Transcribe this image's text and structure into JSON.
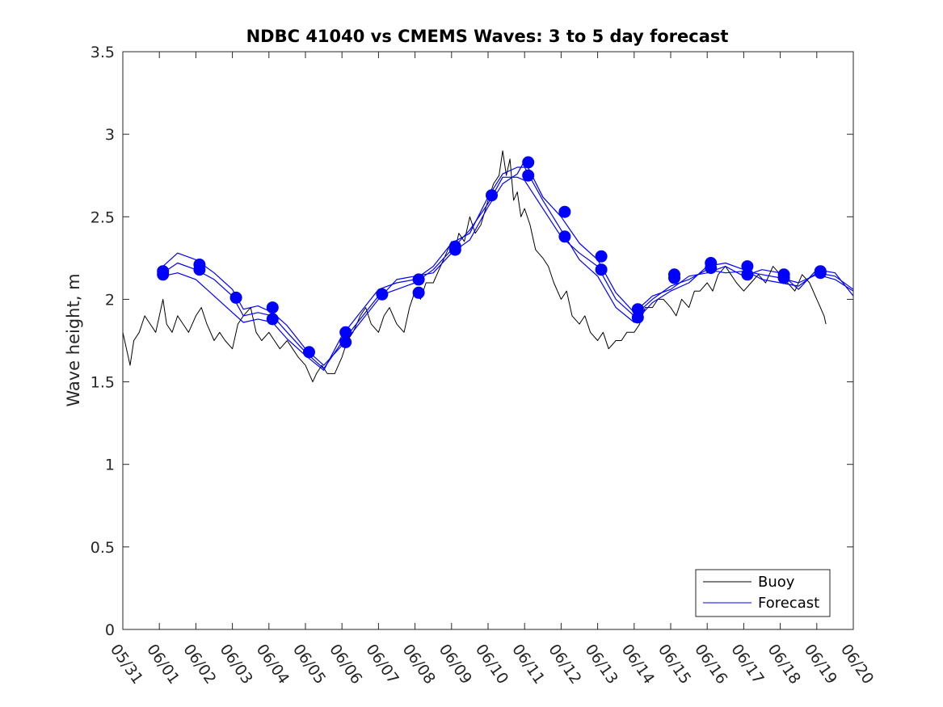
{
  "chart_data": {
    "type": "line",
    "title": "NDBC 41040 vs CMEMS Waves: 3 to 5 day forecast",
    "xlabel": "",
    "ylabel": "Wave height, m",
    "xlim": [
      "05/31",
      "06/20"
    ],
    "ylim": [
      0,
      3.5
    ],
    "x_tick_labels": [
      "05/31",
      "06/01",
      "06/02",
      "06/03",
      "06/04",
      "06/05",
      "06/06",
      "06/07",
      "06/08",
      "06/09",
      "06/10",
      "06/11",
      "06/12",
      "06/13",
      "06/14",
      "06/15",
      "06/16",
      "06/17",
      "06/18",
      "06/19",
      "06/20"
    ],
    "y_tick_labels": [
      "0",
      "0.5",
      "1",
      "1.5",
      "2",
      "2.5",
      "3",
      "3.5"
    ],
    "y_ticks": [
      0,
      0.5,
      1,
      1.5,
      2,
      2.5,
      3,
      3.5
    ],
    "grid": false,
    "legend_position": "bottom-right",
    "legend": [
      "Buoy",
      "Forecast"
    ],
    "series": [
      {
        "name": "Buoy",
        "color": "#000000",
        "x_day_of_june": [
          0.0,
          0.1,
          0.2,
          0.3,
          0.45,
          0.6,
          0.75,
          0.9,
          1.0,
          1.1,
          1.2,
          1.35,
          1.5,
          1.65,
          1.8,
          2.0,
          2.15,
          2.3,
          2.5,
          2.65,
          2.8,
          3.0,
          3.15,
          3.3,
          3.5,
          3.65,
          3.8,
          4.0,
          4.15,
          4.3,
          4.5,
          4.65,
          4.8,
          5.0,
          5.1,
          5.2,
          5.3,
          5.45,
          5.6,
          5.8,
          6.0,
          6.15,
          6.3,
          6.5,
          6.65,
          6.8,
          7.0,
          7.15,
          7.3,
          7.5,
          7.7,
          7.85,
          8.0,
          8.15,
          8.3,
          8.5,
          8.7,
          8.9,
          9.0,
          9.1,
          9.2,
          9.35,
          9.5,
          9.65,
          9.8,
          10.0,
          10.15,
          10.3,
          10.4,
          10.5,
          10.6,
          10.7,
          10.8,
          10.9,
          11.0,
          11.15,
          11.3,
          11.5,
          11.65,
          11.8,
          12.0,
          12.15,
          12.3,
          12.5,
          12.65,
          12.8,
          13.0,
          13.15,
          13.3,
          13.5,
          13.65,
          13.8,
          14.0,
          14.15,
          14.3,
          14.5,
          14.65,
          14.8,
          15.0,
          15.15,
          15.3,
          15.5,
          15.65,
          15.8,
          16.0,
          16.15,
          16.3,
          16.5,
          16.65,
          16.8,
          17.0,
          17.2,
          17.4,
          17.6,
          17.8,
          18.0,
          18.2,
          18.4,
          18.6,
          18.8,
          19.0,
          19.1,
          19.2,
          19.25
        ],
        "y": [
          1.8,
          1.7,
          1.6,
          1.75,
          1.8,
          1.9,
          1.85,
          1.8,
          1.9,
          2.0,
          1.85,
          1.8,
          1.9,
          1.85,
          1.8,
          1.9,
          1.95,
          1.85,
          1.75,
          1.8,
          1.75,
          1.7,
          1.85,
          1.9,
          1.95,
          1.8,
          1.75,
          1.8,
          1.75,
          1.7,
          1.75,
          1.7,
          1.65,
          1.6,
          1.55,
          1.5,
          1.55,
          1.6,
          1.55,
          1.55,
          1.65,
          1.75,
          1.8,
          1.9,
          1.95,
          1.85,
          1.8,
          1.9,
          1.95,
          1.85,
          1.8,
          1.95,
          2.05,
          2.0,
          2.1,
          2.1,
          2.2,
          2.3,
          2.35,
          2.3,
          2.4,
          2.35,
          2.5,
          2.4,
          2.45,
          2.6,
          2.7,
          2.75,
          2.9,
          2.75,
          2.85,
          2.6,
          2.65,
          2.5,
          2.55,
          2.45,
          2.3,
          2.25,
          2.2,
          2.1,
          2.0,
          2.05,
          1.9,
          1.85,
          1.9,
          1.8,
          1.75,
          1.8,
          1.7,
          1.75,
          1.75,
          1.8,
          1.8,
          1.85,
          1.95,
          1.95,
          2.0,
          2.0,
          1.95,
          1.9,
          2.0,
          1.95,
          2.05,
          2.05,
          2.1,
          2.05,
          2.15,
          2.2,
          2.15,
          2.1,
          2.05,
          2.1,
          2.15,
          2.1,
          2.2,
          2.15,
          2.1,
          2.05,
          2.15,
          2.1,
          2.0,
          1.95,
          1.9,
          1.85
        ]
      },
      {
        "name": "Forecast",
        "color": "#0000ff",
        "x_day_of_june": [
          1.1,
          1.5,
          2.0,
          2.5,
          3.0,
          3.3,
          3.7,
          4.1,
          4.5,
          5.0,
          5.5,
          6.0,
          6.5,
          7.0,
          7.5,
          8.0,
          8.5,
          9.0,
          9.5,
          10.0,
          10.4,
          10.8,
          11.0,
          11.5,
          12.0,
          12.5,
          13.0,
          13.5,
          14.0,
          14.5,
          15.0,
          15.5,
          16.0,
          16.5,
          17.0,
          17.5,
          18.0,
          18.5,
          19.0,
          19.5,
          20.0
        ],
        "y": [
          2.16,
          2.22,
          2.18,
          2.12,
          2.02,
          1.9,
          1.92,
          1.9,
          1.8,
          1.68,
          1.58,
          1.74,
          1.88,
          2.02,
          2.06,
          2.1,
          2.18,
          2.3,
          2.42,
          2.58,
          2.74,
          2.74,
          2.72,
          2.55,
          2.38,
          2.28,
          2.2,
          2.0,
          1.9,
          2.0,
          2.08,
          2.12,
          2.18,
          2.16,
          2.17,
          2.15,
          2.13,
          2.1,
          2.15,
          2.12,
          2.05
        ]
      },
      {
        "name": "",
        "color": "#0000ff",
        "x_day_of_june": [
          1.1,
          1.5,
          2.0,
          2.5,
          3.0,
          3.3,
          3.7,
          4.1,
          4.5,
          5.0,
          5.5,
          6.0,
          6.5,
          7.0,
          7.5,
          8.0,
          8.5,
          9.0,
          9.5,
          10.0,
          10.4,
          10.8,
          11.0,
          11.5,
          12.0,
          12.5,
          13.0,
          13.5,
          14.0,
          14.5,
          15.0,
          15.5,
          16.0,
          16.5,
          17.0,
          17.5,
          18.0,
          18.5,
          19.0,
          19.5,
          20.0
        ],
        "y": [
          2.14,
          2.16,
          2.12,
          2.02,
          1.92,
          1.86,
          1.88,
          1.86,
          1.76,
          1.66,
          1.57,
          1.78,
          1.92,
          2.06,
          2.1,
          2.12,
          2.2,
          2.34,
          2.4,
          2.62,
          2.76,
          2.8,
          2.8,
          2.6,
          2.42,
          2.24,
          2.14,
          1.95,
          1.86,
          1.98,
          2.05,
          2.1,
          2.2,
          2.22,
          2.18,
          2.12,
          2.1,
          2.08,
          2.16,
          2.14,
          2.06
        ]
      },
      {
        "name": "",
        "color": "#0000ff",
        "x_day_of_june": [
          1.1,
          1.5,
          2.0,
          2.5,
          3.0,
          3.3,
          3.7,
          4.1,
          4.5,
          5.0,
          5.5,
          6.0,
          6.5,
          7.0,
          7.5,
          8.0,
          8.5,
          9.0,
          9.5,
          10.0,
          10.4,
          10.8,
          11.0,
          11.5,
          12.0,
          12.5,
          13.0,
          13.5,
          14.0,
          14.5,
          15.0,
          15.5,
          16.0,
          16.5,
          17.0,
          17.5,
          18.0,
          18.5,
          19.0,
          19.5,
          20.0
        ],
        "y": [
          2.2,
          2.28,
          2.24,
          2.16,
          2.06,
          1.94,
          1.96,
          1.92,
          1.84,
          1.7,
          1.6,
          1.72,
          1.86,
          2.0,
          2.12,
          2.14,
          2.16,
          2.28,
          2.36,
          2.56,
          2.7,
          2.76,
          2.84,
          2.62,
          2.5,
          2.34,
          2.24,
          2.04,
          1.92,
          2.02,
          2.06,
          2.14,
          2.16,
          2.2,
          2.14,
          2.18,
          2.16,
          2.06,
          2.18,
          2.16,
          2.02
        ]
      }
    ],
    "markers": [
      {
        "x_day_of_june": 1.1,
        "y": 2.17
      },
      {
        "x_day_of_june": 1.1,
        "y": 2.15
      },
      {
        "x_day_of_june": 2.1,
        "y": 2.21
      },
      {
        "x_day_of_june": 2.1,
        "y": 2.18
      },
      {
        "x_day_of_june": 3.1,
        "y": 2.01
      },
      {
        "x_day_of_june": 4.1,
        "y": 1.95
      },
      {
        "x_day_of_june": 4.1,
        "y": 1.88
      },
      {
        "x_day_of_june": 5.1,
        "y": 1.68
      },
      {
        "x_day_of_june": 6.1,
        "y": 1.8
      },
      {
        "x_day_of_june": 6.1,
        "y": 1.74
      },
      {
        "x_day_of_june": 7.1,
        "y": 2.03
      },
      {
        "x_day_of_june": 8.1,
        "y": 2.12
      },
      {
        "x_day_of_june": 8.1,
        "y": 2.04
      },
      {
        "x_day_of_june": 9.1,
        "y": 2.32
      },
      {
        "x_day_of_june": 9.1,
        "y": 2.3
      },
      {
        "x_day_of_june": 10.1,
        "y": 2.63
      },
      {
        "x_day_of_june": 11.1,
        "y": 2.83
      },
      {
        "x_day_of_june": 11.1,
        "y": 2.75
      },
      {
        "x_day_of_june": 12.1,
        "y": 2.53
      },
      {
        "x_day_of_june": 12.1,
        "y": 2.38
      },
      {
        "x_day_of_june": 13.1,
        "y": 2.26
      },
      {
        "x_day_of_june": 13.1,
        "y": 2.18
      },
      {
        "x_day_of_june": 14.1,
        "y": 1.94
      },
      {
        "x_day_of_june": 14.1,
        "y": 1.89
      },
      {
        "x_day_of_june": 15.1,
        "y": 2.15
      },
      {
        "x_day_of_june": 15.1,
        "y": 2.13
      },
      {
        "x_day_of_june": 16.1,
        "y": 2.22
      },
      {
        "x_day_of_june": 16.1,
        "y": 2.19
      },
      {
        "x_day_of_june": 17.1,
        "y": 2.2
      },
      {
        "x_day_of_june": 17.1,
        "y": 2.15
      },
      {
        "x_day_of_june": 18.1,
        "y": 2.15
      },
      {
        "x_day_of_june": 18.1,
        "y": 2.13
      },
      {
        "x_day_of_june": 19.1,
        "y": 2.17
      },
      {
        "x_day_of_june": 19.1,
        "y": 2.16
      }
    ]
  }
}
